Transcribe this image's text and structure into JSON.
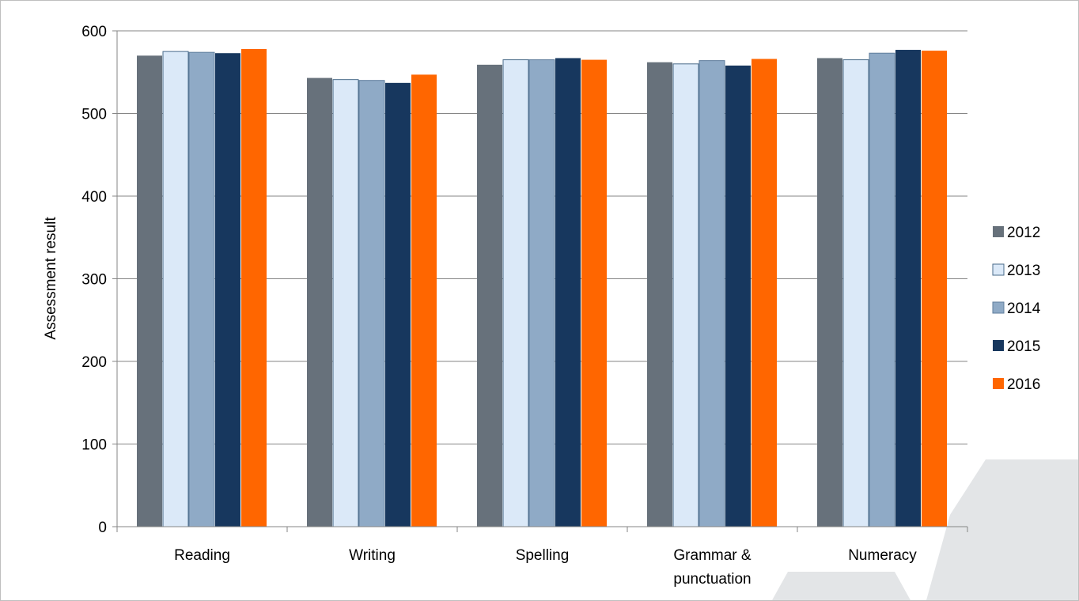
{
  "chart_data": {
    "type": "bar",
    "title": "",
    "xlabel": "",
    "ylabel": "Assessment result",
    "ylim": [
      0,
      600
    ],
    "yticks": [
      0,
      100,
      200,
      300,
      400,
      500,
      600
    ],
    "grid": true,
    "legend_position": "right",
    "categories": [
      [
        "Reading"
      ],
      [
        "Writing"
      ],
      [
        "Spelling"
      ],
      [
        "Grammar &",
        "punctuation"
      ],
      [
        "Numeracy"
      ]
    ],
    "series": [
      {
        "name": "2012",
        "color": "#67717b",
        "values": [
          570,
          543,
          559,
          562,
          567
        ]
      },
      {
        "name": "2013",
        "color": "#dbe9f8",
        "values": [
          575,
          541,
          565,
          560,
          565
        ]
      },
      {
        "name": "2014",
        "color": "#8faac6",
        "values": [
          574,
          540,
          565,
          564,
          573
        ]
      },
      {
        "name": "2015",
        "color": "#17375e",
        "values": [
          573,
          537,
          567,
          558,
          577
        ]
      },
      {
        "name": "2016",
        "color": "#ff6600",
        "values": [
          578,
          547,
          565,
          566,
          576
        ]
      }
    ]
  }
}
